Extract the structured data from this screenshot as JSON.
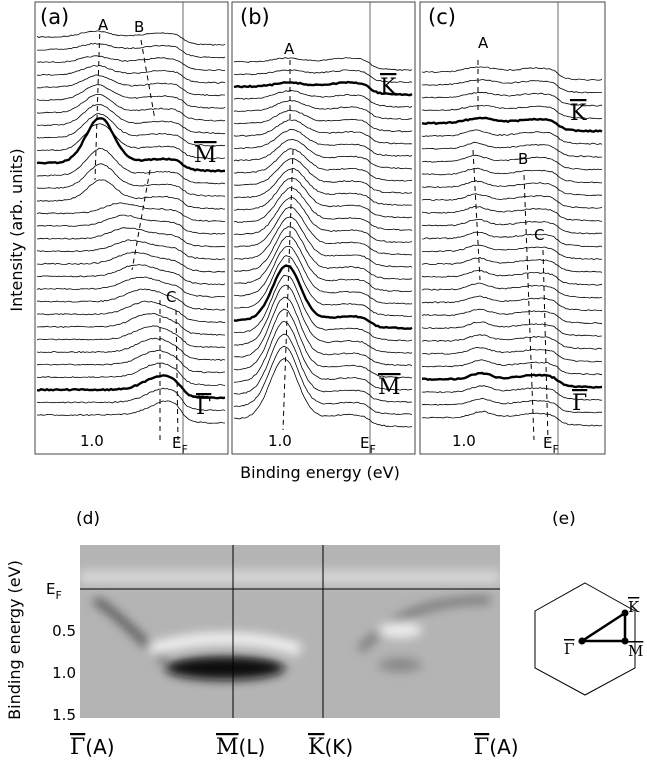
{
  "panels": [
    {
      "label": "(a)",
      "peaks": [
        "A",
        "B",
        "C"
      ],
      "points": [
        "M",
        "Γ"
      ],
      "tick": "1.0",
      "ef": {
        "main": "E",
        "sub": "F"
      }
    },
    {
      "label": "(b)",
      "peaks": [
        "A"
      ],
      "points": [
        "K",
        "M"
      ],
      "tick": "1.0",
      "ef": {
        "main": "E",
        "sub": "F"
      }
    },
    {
      "label": "(c)",
      "peaks": [
        "A",
        "B",
        "C"
      ],
      "points": [
        "K",
        "Γ"
      ],
      "tick": "1.0",
      "ef": {
        "main": "E",
        "sub": "F"
      }
    }
  ],
  "xlabel": "Binding energy  (eV)",
  "ylabel": "Intensity  (arb. units)",
  "map": {
    "label": "(d)",
    "ylabel": "Binding energy  (eV)",
    "yticks": [
      {
        "main": "E",
        "sub": "F"
      },
      "0.5",
      "1.0",
      "1.5"
    ],
    "xlabels": [
      {
        "point": "Γ",
        "suffix": "(A)"
      },
      {
        "point": "M",
        "suffix": "(L)"
      },
      {
        "point": "K",
        "suffix": "(K)"
      },
      {
        "point": "Γ",
        "suffix": "(A)"
      }
    ]
  },
  "bz": {
    "label": "(e)",
    "points": [
      "K",
      "Γ",
      "M"
    ]
  }
}
